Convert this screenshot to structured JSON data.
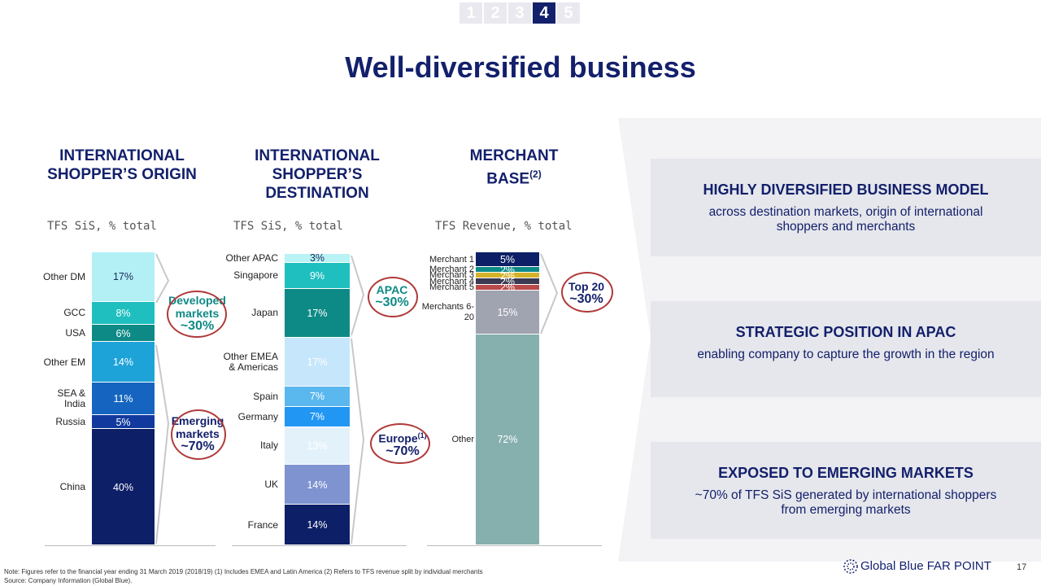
{
  "nav": [
    "1",
    "2",
    "3",
    "4",
    "5"
  ],
  "nav_active": 3,
  "title": "Well-diversified business",
  "chart_data": [
    {
      "type": "bar",
      "stacked": true,
      "title": "INTERNATIONAL SHOPPER’S ORIGIN",
      "subtitle": "TFS SiS, % total",
      "categories": [
        "Other DM",
        "GCC",
        "USA",
        "Other EM",
        "SEA & India",
        "Russia",
        "China"
      ],
      "values": [
        17,
        8,
        6,
        14,
        11,
        5,
        40
      ],
      "value_labels": [
        "17%",
        "8%",
        "6%",
        "14%",
        "11%",
        "5%",
        "40%"
      ],
      "colors": [
        "#b3f0f5",
        "#1fbfbf",
        "#0e8a86",
        "#1ea3d8",
        "#1565c0",
        "#123a9e",
        "#0d1f66"
      ],
      "annotations": [
        {
          "text": "Developed markets",
          "value_text": "~30%"
        },
        {
          "text": "Emerging markets",
          "value_text": "~70%"
        }
      ]
    },
    {
      "type": "bar",
      "stacked": true,
      "title": "INTERNATIONAL SHOPPER’S DESTINATION",
      "subtitle": "TFS SiS, % total",
      "categories": [
        "Other APAC",
        "Singapore",
        "Japan",
        "Other EMEA & Americas",
        "Spain",
        "Germany",
        "Italy",
        "UK",
        "France"
      ],
      "values": [
        3,
        9,
        17,
        17,
        7,
        7,
        13,
        14,
        14
      ],
      "value_labels": [
        "3%",
        "9%",
        "17%",
        "17%",
        "7%",
        "7%",
        "13%",
        "14%",
        "14%"
      ],
      "colors": [
        "#b9f3f5",
        "#1fbfbf",
        "#0e8a86",
        "#c6e6fb",
        "#5bb8ef",
        "#2196f3",
        "#e3f1fb",
        "#7e93cf",
        "#0d1f66"
      ],
      "annotations": [
        {
          "text": "APAC",
          "value_text": "~30%"
        },
        {
          "text": "Europe",
          "note": "(1)",
          "value_text": "~70%"
        }
      ]
    },
    {
      "type": "bar",
      "stacked": true,
      "title": "MERCHANT BASE",
      "title_note": "(2)",
      "subtitle": "TFS Revenue, % total",
      "categories": [
        "Merchant 1",
        "Merchant 2",
        "Merchant 3",
        "Merchant 4",
        "Merchant 5",
        "Merchants 6-20",
        "Other"
      ],
      "values": [
        5,
        2,
        2,
        2,
        2,
        15,
        72
      ],
      "value_labels": [
        "5%",
        "2%",
        "2%",
        "2%",
        "2%",
        "15%",
        "72%"
      ],
      "colors": [
        "#0d1f66",
        "#0e8a86",
        "#d4b22a",
        "#3a3a52",
        "#b94a4a",
        "#a0a3b0",
        "#86b0ae"
      ],
      "annotations": [
        {
          "text": "Top 20",
          "value_text": "~30%"
        }
      ]
    }
  ],
  "panels": [
    {
      "heading": "HIGHLY DIVERSIFIED BUSINESS MODEL",
      "text": "across destination markets, origin of international shoppers and merchants"
    },
    {
      "heading": "STRATEGIC POSITION IN APAC",
      "text": "enabling company to capture the growth in the region"
    },
    {
      "heading": "EXPOSED TO EMERGING MARKETS",
      "text": "~70% of TFS SiS generated by international shoppers from emerging markets"
    }
  ],
  "footnote": "Note: Figures refer to the financial year ending 31 March 2019 (2018/19) (1) Includes EMEA and Latin America (2) Refers to TFS revenue split by individual merchants",
  "source": "Source: Company Information (Global Blue).",
  "brand": "Global Blue FAR POINT",
  "page_number": "17"
}
